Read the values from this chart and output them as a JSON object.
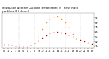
{
  "title": "Milwaukee Weather Outdoor Temperature vs THSW Index\nper Hour (24 Hours)",
  "title_fontsize": 2.8,
  "bg_color": "#ffffff",
  "grid_color": "#aaaaaa",
  "outdoor_temp_color": "#cc0000",
  "thsw_color": "#ff8800",
  "black_color": "#000000",
  "dot_size": 1.2,
  "hours": [
    0,
    1,
    2,
    3,
    4,
    5,
    6,
    7,
    8,
    9,
    10,
    11,
    12,
    13,
    14,
    15,
    16,
    17,
    18,
    19,
    20,
    21,
    22,
    23
  ],
  "outdoor_temp": [
    34,
    33,
    32,
    31,
    30,
    29,
    30,
    32,
    36,
    42,
    48,
    54,
    58,
    60,
    61,
    59,
    57,
    54,
    50,
    46,
    43,
    40,
    38,
    35
  ],
  "thsw_index": [
    null,
    null,
    null,
    null,
    null,
    null,
    null,
    null,
    36,
    50,
    66,
    80,
    88,
    92,
    93,
    88,
    80,
    70,
    56,
    46,
    null,
    null,
    null,
    null
  ],
  "ylim": [
    26,
    100
  ],
  "xlim": [
    -0.5,
    23.5
  ],
  "yticks": [
    30,
    40,
    50,
    60,
    70,
    80,
    90
  ],
  "ytick_labels": [
    "30",
    "40",
    "50",
    "60",
    "70",
    "80",
    "90"
  ],
  "xticks": [
    0,
    1,
    2,
    3,
    4,
    5,
    6,
    7,
    8,
    9,
    10,
    11,
    12,
    13,
    14,
    15,
    16,
    17,
    18,
    19,
    20,
    21,
    22,
    23
  ],
  "vgrid_ticks": [
    4,
    8,
    12,
    16,
    20
  ],
  "tick_fontsize": 2.5
}
